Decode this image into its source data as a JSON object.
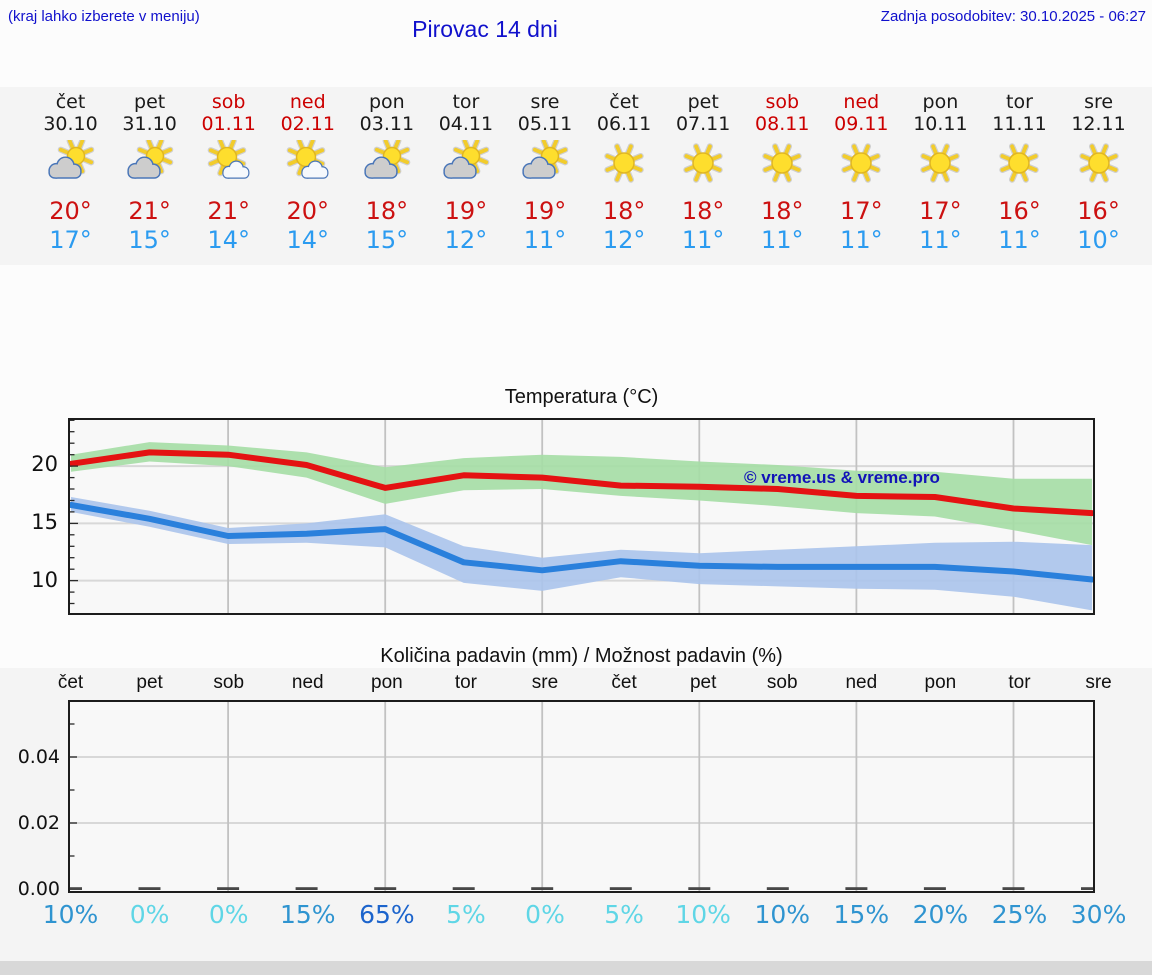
{
  "header": {
    "menu_hint": "(kraj lahko izberete v meniju)",
    "title": "Pirovac 14 dni",
    "last_update": "Zadnja posodobitev: 30.10.2025 - 06:27"
  },
  "colors": {
    "header_blue": "#1010cc",
    "weekend_red": "#cc0000",
    "high_temp_red": "#cc1111",
    "low_temp_blue": "#2b9bf0",
    "temp_max_line": "#e41212",
    "temp_max_band": "#a6dda6",
    "temp_min_line": "#2a80dc",
    "temp_min_band": "#abc4ec",
    "prob_light": "#5fd6e6",
    "prob_medium": "#2f94d0",
    "prob_dark": "#1c64cc"
  },
  "forecast_days": [
    {
      "day": "čet",
      "date": "30.10",
      "weekend": false,
      "icon": "sun-cloud",
      "high": "20°",
      "low": "17°"
    },
    {
      "day": "pet",
      "date": "31.10",
      "weekend": false,
      "icon": "sun-cloud",
      "high": "21°",
      "low": "15°"
    },
    {
      "day": "sob",
      "date": "01.11",
      "weekend": true,
      "icon": "sun-small-cloud",
      "high": "21°",
      "low": "14°"
    },
    {
      "day": "ned",
      "date": "02.11",
      "weekend": true,
      "icon": "sun-small-cloud",
      "high": "20°",
      "low": "14°"
    },
    {
      "day": "pon",
      "date": "03.11",
      "weekend": false,
      "icon": "sun-cloud",
      "high": "18°",
      "low": "15°"
    },
    {
      "day": "tor",
      "date": "04.11",
      "weekend": false,
      "icon": "sun-cloud",
      "high": "19°",
      "low": "12°"
    },
    {
      "day": "sre",
      "date": "05.11",
      "weekend": false,
      "icon": "sun-cloud",
      "high": "19°",
      "low": "11°"
    },
    {
      "day": "čet",
      "date": "06.11",
      "weekend": false,
      "icon": "sun",
      "high": "18°",
      "low": "12°"
    },
    {
      "day": "pet",
      "date": "07.11",
      "weekend": false,
      "icon": "sun",
      "high": "18°",
      "low": "11°"
    },
    {
      "day": "sob",
      "date": "08.11",
      "weekend": true,
      "icon": "sun",
      "high": "18°",
      "low": "11°"
    },
    {
      "day": "ned",
      "date": "09.11",
      "weekend": true,
      "icon": "sun",
      "high": "17°",
      "low": "11°"
    },
    {
      "day": "pon",
      "date": "10.11",
      "weekend": false,
      "icon": "sun",
      "high": "17°",
      "low": "11°"
    },
    {
      "day": "tor",
      "date": "11.11",
      "weekend": false,
      "icon": "sun",
      "high": "16°",
      "low": "11°"
    },
    {
      "day": "sre",
      "date": "12.11",
      "weekend": false,
      "icon": "sun",
      "high": "16°",
      "low": "10°"
    }
  ],
  "chart_data": [
    {
      "type": "line",
      "title": "Temperatura (°C)",
      "watermark": "© vreme.us & vreme.pro",
      "x_dates": [
        "30.10",
        "31.10",
        "01.11",
        "02.11",
        "03.11",
        "04.11",
        "05.11",
        "06.11",
        "07.11",
        "08.11",
        "09.11",
        "10.11",
        "11.11",
        "12.11"
      ],
      "ylim": [
        7.0,
        24.2
      ],
      "yticks": [
        20,
        15,
        10
      ],
      "grid_day_indices": [
        2,
        4,
        6,
        8,
        10,
        12
      ],
      "series": [
        {
          "name": "temp-max",
          "color": "#e41212",
          "values": [
            20.2,
            21.2,
            21.0,
            20.1,
            18.1,
            19.2,
            19.0,
            18.3,
            18.2,
            18.0,
            17.4,
            17.3,
            16.3,
            15.9
          ]
        },
        {
          "name": "temp-max-range",
          "type": "band",
          "color": "#a6dda6",
          "upper": [
            21.0,
            22.1,
            21.8,
            21.2,
            19.9,
            20.7,
            21.0,
            20.8,
            20.4,
            20.1,
            19.6,
            19.5,
            18.9,
            18.9
          ],
          "lower": [
            19.5,
            20.4,
            20.0,
            19.0,
            16.7,
            17.9,
            18.0,
            17.4,
            17.0,
            16.5,
            15.9,
            15.6,
            14.4,
            13.1
          ]
        },
        {
          "name": "temp-min",
          "color": "#2a80dc",
          "values": [
            16.6,
            15.4,
            13.9,
            14.1,
            14.5,
            11.6,
            10.9,
            11.7,
            11.3,
            11.2,
            11.2,
            11.2,
            10.8,
            10.1
          ]
        },
        {
          "name": "temp-min-range",
          "type": "band",
          "color": "#abc4ec",
          "upper": [
            17.3,
            16.1,
            14.6,
            15.0,
            15.8,
            13.0,
            12.0,
            12.7,
            12.4,
            12.7,
            13.0,
            13.3,
            13.4,
            13.1
          ],
          "lower": [
            16.0,
            14.7,
            13.2,
            13.3,
            12.9,
            9.8,
            9.1,
            10.3,
            9.7,
            9.5,
            9.3,
            9.2,
            8.6,
            7.4
          ]
        }
      ]
    },
    {
      "type": "bar",
      "title": "Količina padavin (mm) / Možnost padavin (%)",
      "categories": [
        "čet",
        "pet",
        "sob",
        "ned",
        "pon",
        "tor",
        "sre",
        "čet",
        "pet",
        "sob",
        "ned",
        "pon",
        "tor",
        "sre"
      ],
      "values": [
        0,
        0,
        0,
        0,
        0,
        0,
        0,
        0,
        0,
        0,
        0,
        0,
        0,
        0
      ],
      "unit": "mm",
      "ylim": [
        0,
        0.057
      ],
      "yticks": [
        "0.04",
        "0.02",
        "0.00"
      ],
      "grid_day_indices": [
        2,
        4,
        6,
        8,
        10,
        12
      ],
      "probability_percent": [
        10,
        0,
        0,
        15,
        65,
        5,
        0,
        5,
        10,
        10,
        15,
        20,
        25,
        30
      ],
      "probability_labels": [
        {
          "label": "10%",
          "color": "#2f94d0"
        },
        {
          "label": "0%",
          "color": "#5fd6e6"
        },
        {
          "label": "0%",
          "color": "#5fd6e6"
        },
        {
          "label": "15%",
          "color": "#2f94d0"
        },
        {
          "label": "65%",
          "color": "#1c64cc"
        },
        {
          "label": "5%",
          "color": "#5fd6e6"
        },
        {
          "label": "0%",
          "color": "#5fd6e6"
        },
        {
          "label": "5%",
          "color": "#5fd6e6"
        },
        {
          "label": "10%",
          "color": "#5fd6e6"
        },
        {
          "label": "10%",
          "color": "#2f94d0"
        },
        {
          "label": "15%",
          "color": "#2f94d0"
        },
        {
          "label": "20%",
          "color": "#2f94d0"
        },
        {
          "label": "25%",
          "color": "#2f94d0"
        },
        {
          "label": "30%",
          "color": "#2f94d0"
        }
      ]
    }
  ]
}
